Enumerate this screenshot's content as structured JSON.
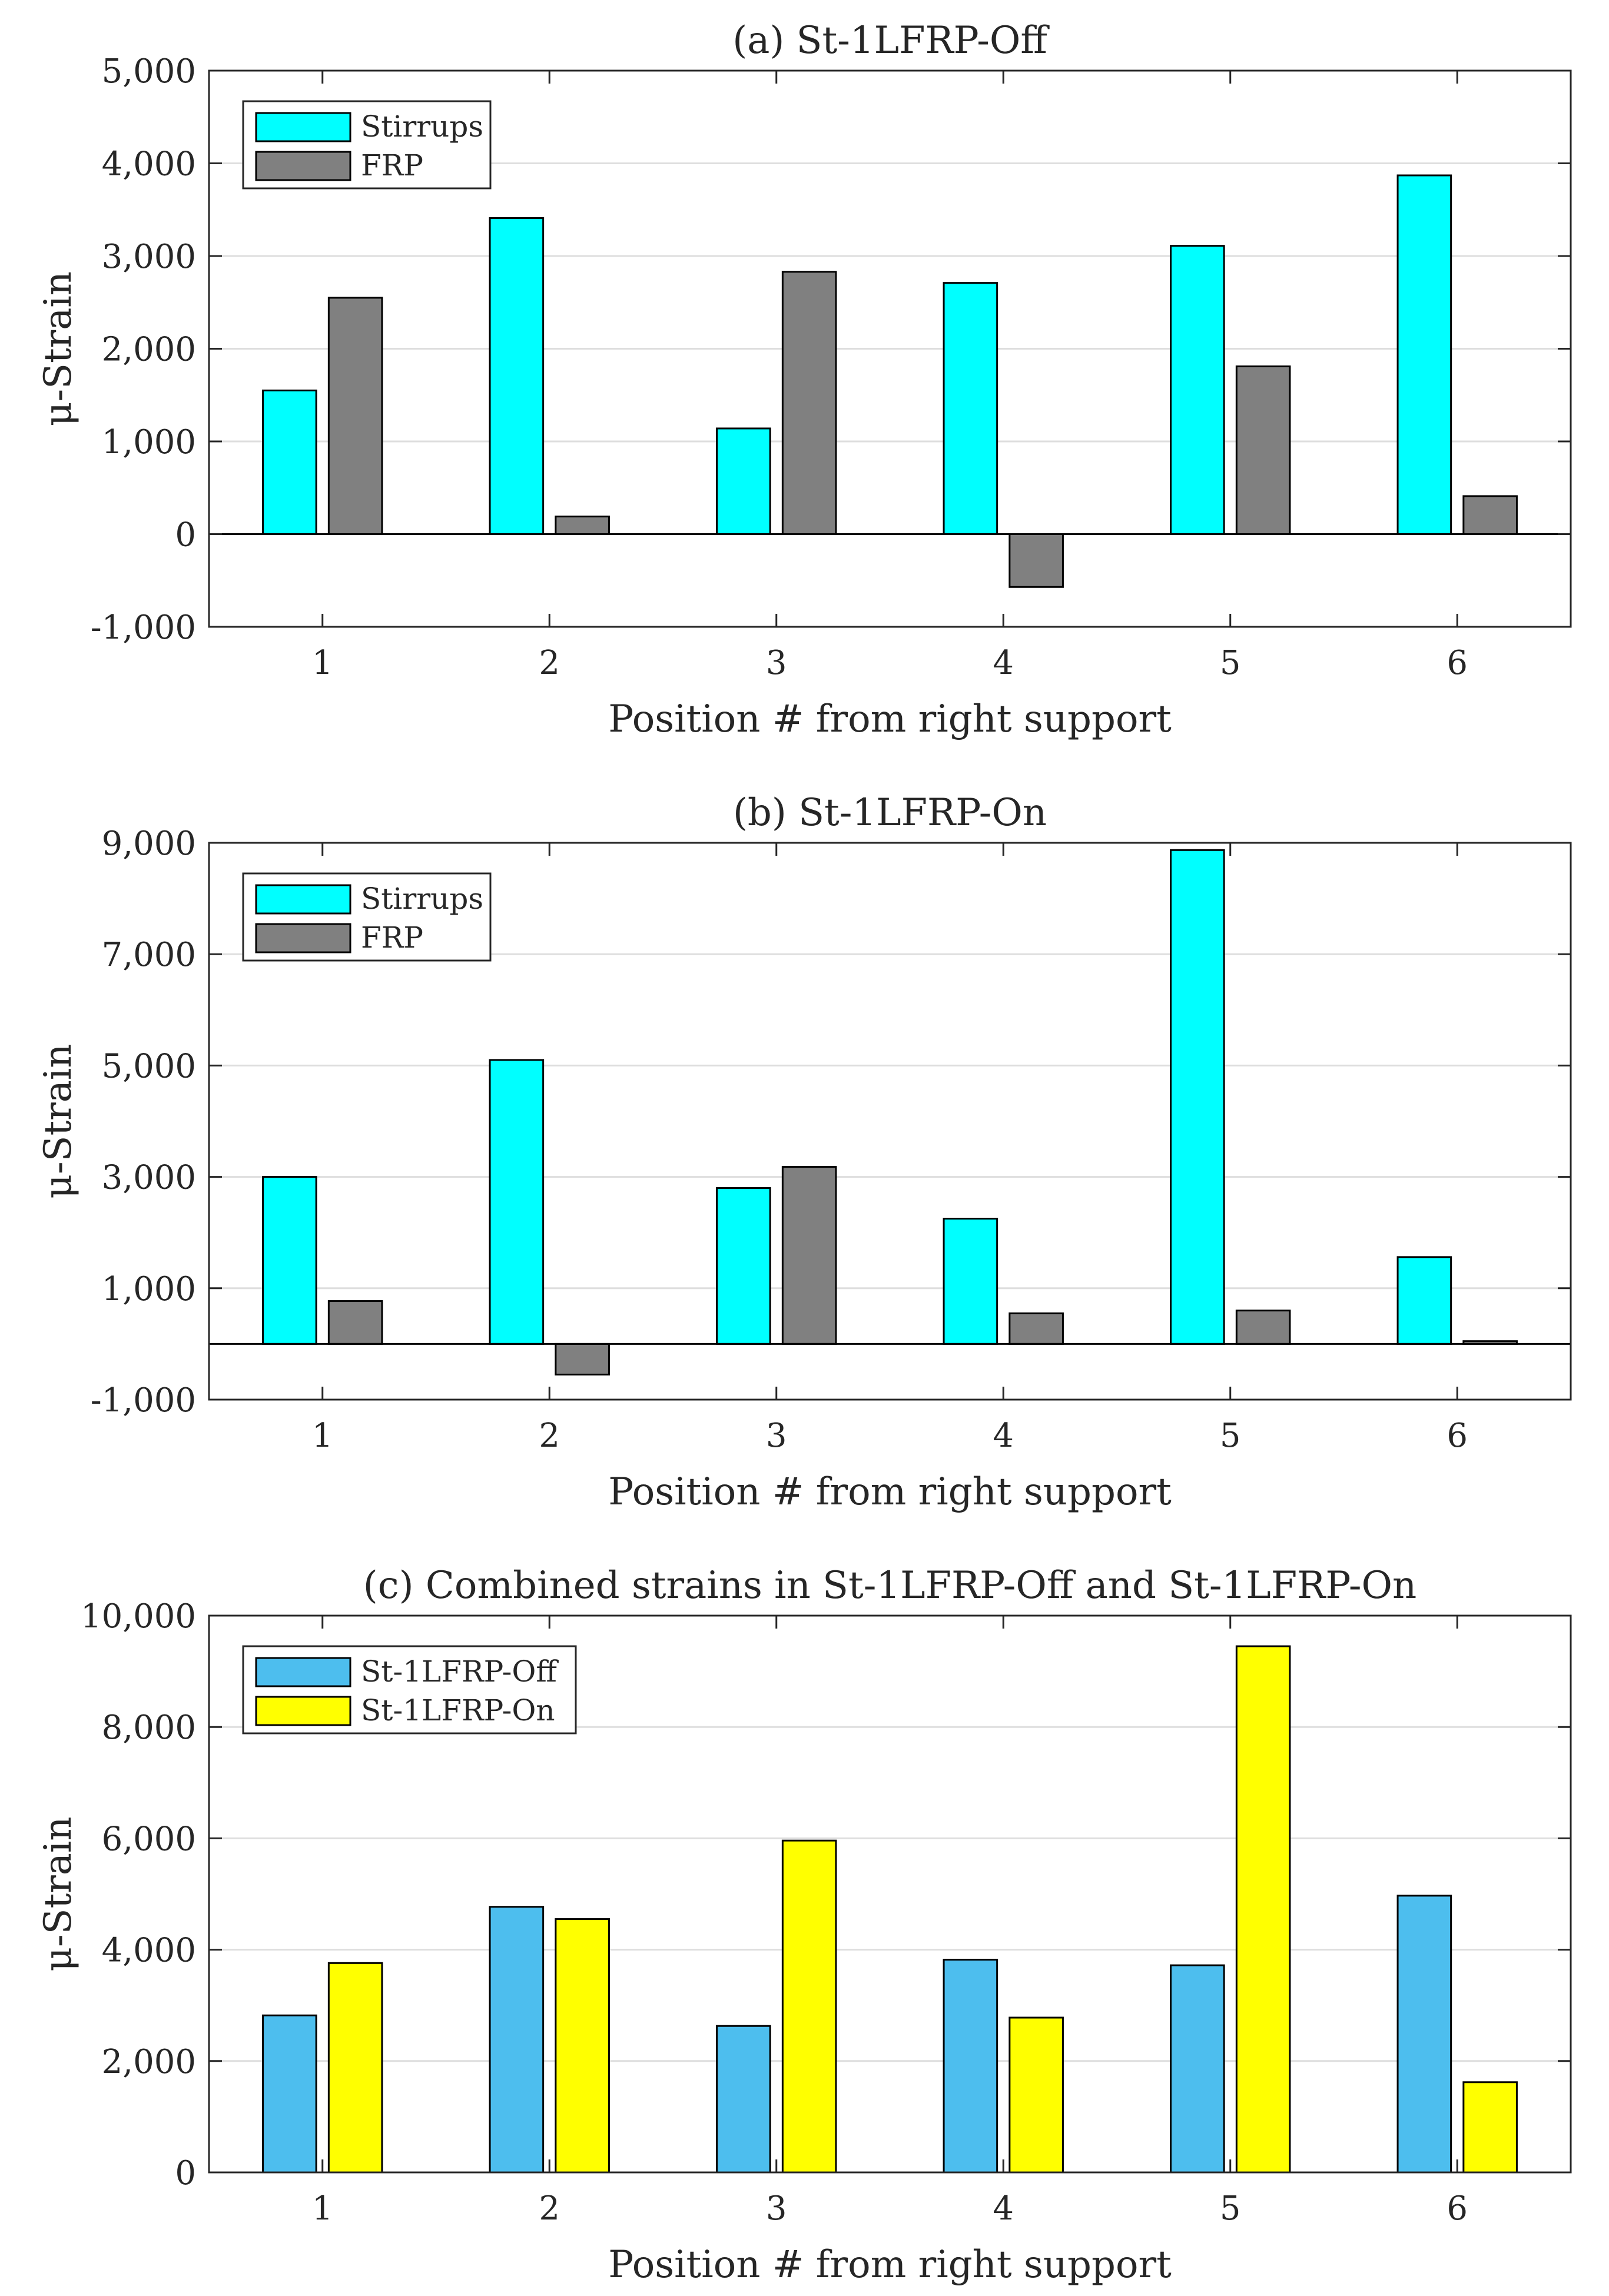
{
  "colors": {
    "stirrups": "#00FFFF",
    "frp": "#808080",
    "off": "#4DBEEE",
    "on": "#FFFF00",
    "grid": "#DEDEDE",
    "axis": "#262626"
  },
  "chart_data": [
    {
      "type": "bar",
      "title": "(a) St-1LFRP-Off",
      "xlabel": "Position # from right support",
      "ylabel": "μ-Strain",
      "categories": [
        "1",
        "2",
        "3",
        "4",
        "5",
        "6"
      ],
      "ylim": [
        -1000,
        5000
      ],
      "yticks": [
        -1000,
        0,
        1000,
        2000,
        3000,
        4000,
        5000
      ],
      "ytick_labels": [
        "-1,000",
        "0",
        "1,000",
        "2,000",
        "3,000",
        "4,000",
        "5,000"
      ],
      "grid": true,
      "legend_position": "top-left",
      "series": [
        {
          "name": "Stirrups",
          "color_key": "stirrups",
          "values": [
            1550,
            3410,
            1140,
            2710,
            3110,
            3870
          ]
        },
        {
          "name": "FRP",
          "color_key": "frp",
          "values": [
            2550,
            190,
            2830,
            -570,
            1810,
            410
          ]
        }
      ]
    },
    {
      "type": "bar",
      "title": "(b) St-1LFRP-On",
      "xlabel": "Position # from right support",
      "ylabel": "μ-Strain",
      "categories": [
        "1",
        "2",
        "3",
        "4",
        "5",
        "6"
      ],
      "ylim": [
        -1000,
        9000
      ],
      "yticks": [
        -1000,
        1000,
        3000,
        5000,
        7000,
        9000
      ],
      "ytick_labels": [
        "-1,000",
        "1,000",
        "3,000",
        "5,000",
        "7,000",
        "9,000"
      ],
      "grid": true,
      "legend_position": "top-left",
      "series": [
        {
          "name": "Stirrups",
          "color_key": "stirrups",
          "values": [
            3000,
            5100,
            2800,
            2250,
            8870,
            1560
          ]
        },
        {
          "name": "FRP",
          "color_key": "frp",
          "values": [
            770,
            -550,
            3180,
            550,
            600,
            50
          ]
        }
      ]
    },
    {
      "type": "bar",
      "title": "(c) Combined strains in St-1LFRP-Off and St-1LFRP-On",
      "xlabel": "Position # from right support",
      "ylabel": "μ-Strain",
      "categories": [
        "1",
        "2",
        "3",
        "4",
        "5",
        "6"
      ],
      "ylim": [
        0,
        10000
      ],
      "yticks": [
        0,
        2000,
        4000,
        6000,
        8000,
        10000
      ],
      "ytick_labels": [
        "0",
        "2,000",
        "4,000",
        "6,000",
        "8,000",
        "10,000"
      ],
      "grid": true,
      "legend_position": "top-left",
      "series": [
        {
          "name": "St-1LFRP-Off",
          "color_key": "off",
          "values": [
            2820,
            4770,
            2630,
            3820,
            3720,
            4970
          ]
        },
        {
          "name": "St-1LFRP-On",
          "color_key": "on",
          "values": [
            3760,
            4550,
            5960,
            2780,
            9450,
            1620
          ]
        }
      ]
    }
  ]
}
